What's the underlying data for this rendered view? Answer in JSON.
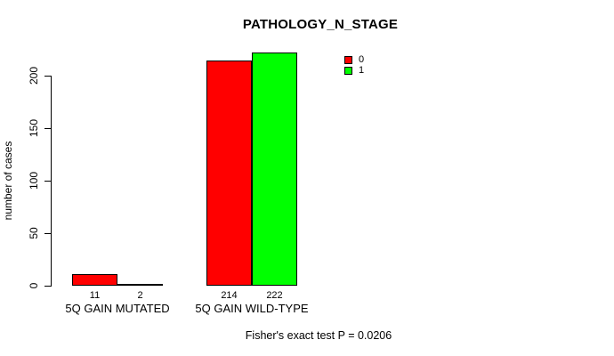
{
  "chart_data": {
    "type": "bar",
    "title": "PATHOLOGY_N_STAGE",
    "xlabel": "",
    "ylabel": "number of cases",
    "ylim": [
      0,
      230
    ],
    "yticks": [
      0,
      50,
      100,
      150,
      200
    ],
    "grid": false,
    "categories": [
      "5Q GAIN MUTATED",
      "5Q GAIN WILD-TYPE"
    ],
    "series": [
      {
        "name": "0",
        "color": "#FF0000",
        "values": [
          11,
          214
        ]
      },
      {
        "name": "1",
        "color": "#00FF00",
        "values": [
          2,
          222
        ]
      }
    ],
    "bar_value_labels": [
      [
        "11",
        "2"
      ],
      [
        "214",
        "222"
      ]
    ],
    "legend": {
      "position": "upper-right-inside",
      "entries": [
        "0",
        "1"
      ]
    },
    "annotation": "Fisher's exact test P = 0.0206"
  }
}
